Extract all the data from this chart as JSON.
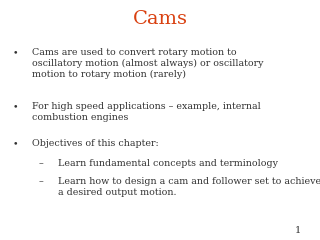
{
  "title": "Cams",
  "title_color": "#D94010",
  "background_color": "#FFFFFF",
  "slide_number": "1",
  "text_color": "#333333",
  "bullet_points": [
    {
      "level": 1,
      "bullet": "•",
      "text": "Cams are used to convert rotary motion to\noscillatory motion (almost always) or oscillatory\nmotion to rotary motion (rarely)"
    },
    {
      "level": 1,
      "bullet": "•",
      "text": "For high speed applications – example, internal\ncombustion engines"
    },
    {
      "level": 1,
      "bullet": "•",
      "text": "Objectives of this chapter:"
    },
    {
      "level": 2,
      "bullet": "–",
      "text": "Learn fundamental concepts and terminology"
    },
    {
      "level": 2,
      "bullet": "–",
      "text": "Learn how to design a cam and follower set to achieve\na desired output motion."
    }
  ],
  "title_fontsize": 14,
  "body_fontsize": 6.8,
  "slide_num_fontsize": 7,
  "font_family": "serif",
  "title_fontstyle": "normal"
}
